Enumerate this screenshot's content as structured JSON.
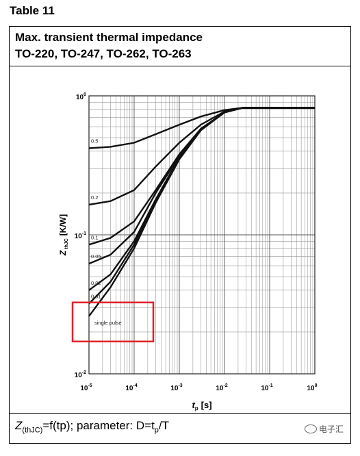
{
  "table_label": "Table 11",
  "header": {
    "line1": "Max. transient thermal impedance",
    "line2": "TO-220, TO-247, TO-262, TO-263"
  },
  "footer": {
    "z_label": "Z",
    "z_sub": "(thJC)",
    "rest_a": "=f(tp); parameter: D=t",
    "t_sub": "p",
    "rest_b": "/T"
  },
  "watermark": {
    "text": "电子汇"
  },
  "highlight_color": "#e0202a",
  "chart_data": {
    "type": "line",
    "x_scale": "log",
    "y_scale": "log",
    "xlim": [
      1e-05,
      1
    ],
    "ylim": [
      0.01,
      1
    ],
    "grid": true,
    "xlabel": "t",
    "xlabel_sub": "p",
    "xlabel_unit": "[s]",
    "ylabel": "Z",
    "ylabel_sub": "thJC",
    "ylabel_unit": "[K/W]",
    "x_ticks": [
      {
        "base": "10",
        "exp": "-5",
        "value": 1e-05
      },
      {
        "base": "10",
        "exp": "-4",
        "value": 0.0001
      },
      {
        "base": "10",
        "exp": "-3",
        "value": 0.001
      },
      {
        "base": "10",
        "exp": "-2",
        "value": 0.01
      },
      {
        "base": "10",
        "exp": "-1",
        "value": 0.1
      },
      {
        "base": "10",
        "exp": "0",
        "value": 1
      }
    ],
    "y_ticks": [
      {
        "base": "10",
        "exp": "-2",
        "value": 0.01
      },
      {
        "base": "10",
        "exp": "-1",
        "value": 0.1
      },
      {
        "base": "10",
        "exp": "0",
        "value": 1
      }
    ],
    "highlighted_series": "single pulse",
    "series": [
      {
        "name": "0.5",
        "points": [
          [
            1e-05,
            0.42
          ],
          [
            3e-05,
            0.43
          ],
          [
            0.0001,
            0.46
          ],
          [
            0.0003,
            0.53
          ],
          [
            0.001,
            0.62
          ],
          [
            0.003,
            0.71
          ],
          [
            0.01,
            0.79
          ],
          [
            0.025,
            0.82
          ],
          [
            1,
            0.82
          ]
        ]
      },
      {
        "name": "0.2",
        "points": [
          [
            1e-05,
            0.165
          ],
          [
            3e-05,
            0.175
          ],
          [
            0.0001,
            0.21
          ],
          [
            0.0003,
            0.31
          ],
          [
            0.001,
            0.46
          ],
          [
            0.003,
            0.62
          ],
          [
            0.01,
            0.77
          ],
          [
            0.025,
            0.82
          ],
          [
            1,
            0.82
          ]
        ]
      },
      {
        "name": "0.1",
        "points": [
          [
            1e-05,
            0.085
          ],
          [
            3e-05,
            0.095
          ],
          [
            0.0001,
            0.125
          ],
          [
            0.0003,
            0.21
          ],
          [
            0.001,
            0.38
          ],
          [
            0.003,
            0.58
          ],
          [
            0.01,
            0.76
          ],
          [
            0.025,
            0.82
          ],
          [
            1,
            0.82
          ]
        ]
      },
      {
        "name": "0.05",
        "points": [
          [
            1e-05,
            0.062
          ],
          [
            3e-05,
            0.072
          ],
          [
            0.0001,
            0.105
          ],
          [
            0.0003,
            0.2
          ],
          [
            0.001,
            0.37
          ],
          [
            0.003,
            0.58
          ],
          [
            0.01,
            0.76
          ],
          [
            0.025,
            0.82
          ],
          [
            1,
            0.82
          ]
        ]
      },
      {
        "name": "0.02",
        "points": [
          [
            1e-05,
            0.04
          ],
          [
            3e-05,
            0.052
          ],
          [
            0.0001,
            0.09
          ],
          [
            0.0003,
            0.18
          ],
          [
            0.001,
            0.36
          ],
          [
            0.003,
            0.57
          ],
          [
            0.01,
            0.76
          ],
          [
            0.025,
            0.82
          ],
          [
            1,
            0.82
          ]
        ]
      },
      {
        "name": "0.01",
        "points": [
          [
            1e-05,
            0.032
          ],
          [
            3e-05,
            0.046
          ],
          [
            0.0001,
            0.085
          ],
          [
            0.0003,
            0.175
          ],
          [
            0.001,
            0.355
          ],
          [
            0.003,
            0.57
          ],
          [
            0.01,
            0.76
          ],
          [
            0.025,
            0.82
          ],
          [
            1,
            0.82
          ]
        ]
      },
      {
        "name": "single pulse",
        "points": [
          [
            1e-05,
            0.026
          ],
          [
            3e-05,
            0.042
          ],
          [
            0.0001,
            0.08
          ],
          [
            0.0003,
            0.17
          ],
          [
            0.001,
            0.35
          ],
          [
            0.003,
            0.565
          ],
          [
            0.01,
            0.76
          ],
          [
            0.025,
            0.82
          ],
          [
            1,
            0.82
          ]
        ]
      }
    ]
  }
}
